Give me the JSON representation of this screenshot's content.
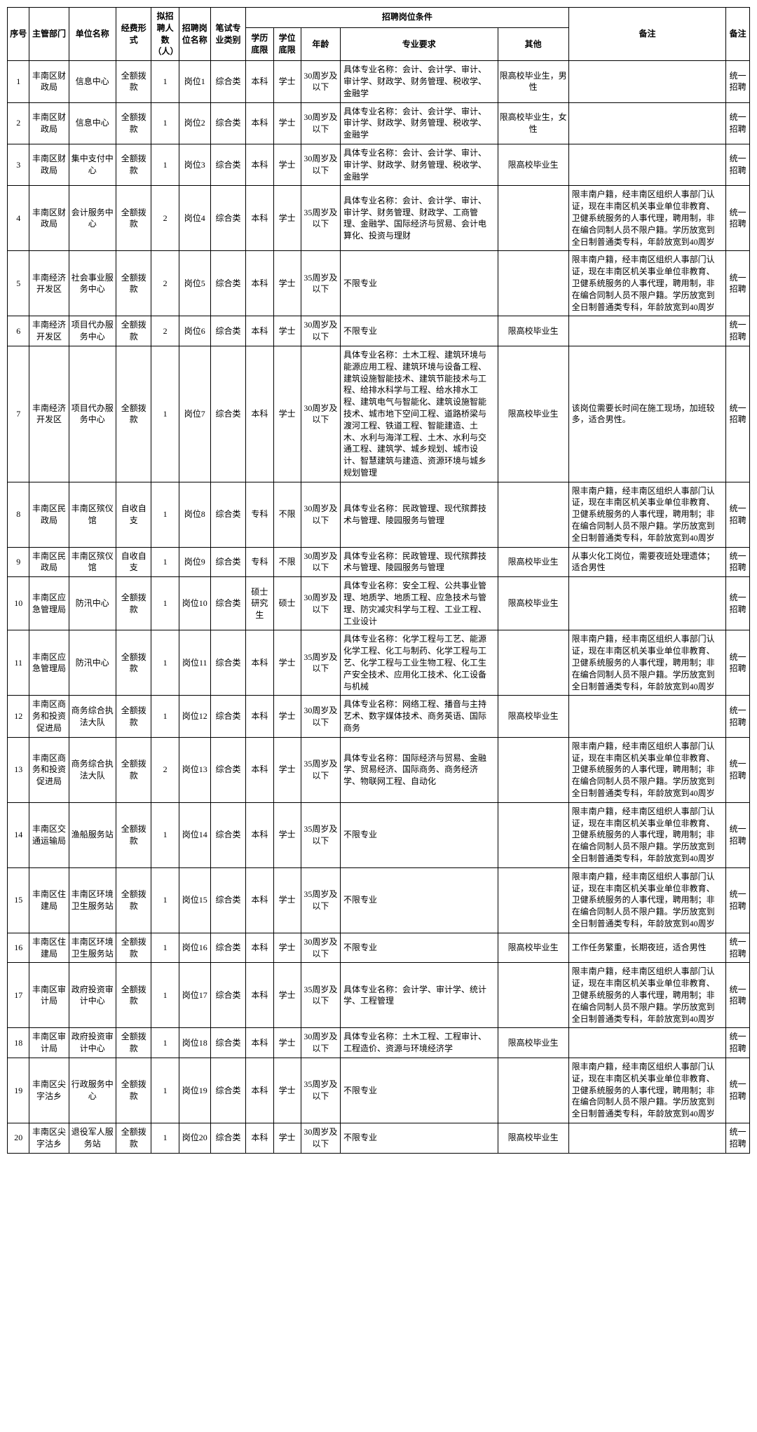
{
  "headers": {
    "seq": "序号",
    "dept": "主管部门",
    "unit": "单位名称",
    "fund": "经费形式",
    "num": "拟招聘人数（人）",
    "post": "招聘岗位名称",
    "exam": "笔试专业类别",
    "cond_group": "招聘岗位条件",
    "edu": "学历底限",
    "deg": "学位底限",
    "age": "年龄",
    "major": "专业要求",
    "other": "其他",
    "remark": "备注",
    "note": "备注"
  },
  "rows": [
    {
      "seq": "1",
      "dept": "丰南区财政局",
      "unit": "信息中心",
      "fund": "全额拨款",
      "num": "1",
      "post": "岗位1",
      "exam": "综合类",
      "edu": "本科",
      "deg": "学士",
      "age": "30周岁及以下",
      "major": "具体专业名称：会计、会计学、审计、审计学、财政学、财务管理、税收学、金融学",
      "other": "限高校毕业生，男性",
      "remark": "",
      "note": "统一招聘"
    },
    {
      "seq": "2",
      "dept": "丰南区财政局",
      "unit": "信息中心",
      "fund": "全额拨款",
      "num": "1",
      "post": "岗位2",
      "exam": "综合类",
      "edu": "本科",
      "deg": "学士",
      "age": "30周岁及以下",
      "major": "具体专业名称：会计、会计学、审计、审计学、财政学、财务管理、税收学、金融学",
      "other": "限高校毕业生，女性",
      "remark": "",
      "note": "统一招聘"
    },
    {
      "seq": "3",
      "dept": "丰南区财政局",
      "unit": "集中支付中心",
      "fund": "全额拨款",
      "num": "1",
      "post": "岗位3",
      "exam": "综合类",
      "edu": "本科",
      "deg": "学士",
      "age": "30周岁及以下",
      "major": "具体专业名称：会计、会计学、审计、审计学、财政学、财务管理、税收学、金融学",
      "other": "限高校毕业生",
      "remark": "",
      "note": "统一招聘"
    },
    {
      "seq": "4",
      "dept": "丰南区财政局",
      "unit": "会计服务中心",
      "fund": "全额拨款",
      "num": "2",
      "post": "岗位4",
      "exam": "综合类",
      "edu": "本科",
      "deg": "学士",
      "age": "35周岁及以下",
      "major": "具体专业名称：会计、会计学、审计、审计学、财务管理、财政学、工商管理、金融学、国际经济与贸易、会计电算化、投资与理财",
      "other": "",
      "remark": "限丰南户籍，经丰南区组织人事部门认证，现在丰南区机关事业单位非教育、卫健系统服务的人事代理，聘用制，非在编合同制人员不限户籍。学历放宽到全日制普通类专科，年龄放宽到40周岁",
      "note": "统一招聘"
    },
    {
      "seq": "5",
      "dept": "丰南经济开发区",
      "unit": "社会事业服务中心",
      "fund": "全额拨款",
      "num": "2",
      "post": "岗位5",
      "exam": "综合类",
      "edu": "本科",
      "deg": "学士",
      "age": "35周岁及以下",
      "major": "不限专业",
      "other": "",
      "remark": "限丰南户籍，经丰南区组织人事部门认证，现在丰南区机关事业单位非教育、卫健系统服务的人事代理，聘用制，非在编合同制人员不限户籍。学历放宽到全日制普通类专科，年龄放宽到40周岁",
      "note": "统一招聘"
    },
    {
      "seq": "6",
      "dept": "丰南经济开发区",
      "unit": "项目代办服务中心",
      "fund": "全额拨款",
      "num": "2",
      "post": "岗位6",
      "exam": "综合类",
      "edu": "本科",
      "deg": "学士",
      "age": "30周岁及以下",
      "major": "不限专业",
      "other": "限高校毕业生",
      "remark": "",
      "note": "统一招聘"
    },
    {
      "seq": "7",
      "dept": "丰南经济开发区",
      "unit": "项目代办服务中心",
      "fund": "全额拨款",
      "num": "1",
      "post": "岗位7",
      "exam": "综合类",
      "edu": "本科",
      "deg": "学士",
      "age": "30周岁及以下",
      "major": "具体专业名称：土木工程、建筑环境与能源应用工程、建筑环境与设备工程、建筑设施智能技术、建筑节能技术与工程、给排水科学与工程、给水排水工程、建筑电气与智能化、建筑设施智能技术、城市地下空间工程、道路桥梁与渡河工程、铁道工程、智能建造、土木、水利与海洋工程、土木、水利与交通工程、建筑学、城乡规划、城市设计、智慧建筑与建造、资源环境与城乡规划管理",
      "other": "限高校毕业生",
      "remark": "该岗位需要长时间在施工现场，加班较多，适合男性。",
      "note": "统一招聘"
    },
    {
      "seq": "8",
      "dept": "丰南区民政局",
      "unit": "丰南区殡仪馆",
      "fund": "自收自支",
      "num": "1",
      "post": "岗位8",
      "exam": "综合类",
      "edu": "专科",
      "deg": "不限",
      "age": "30周岁及以下",
      "major": "具体专业名称：民政管理、现代殡葬技术与管理、陵园服务与管理",
      "other": "",
      "remark": "限丰南户籍，经丰南区组织人事部门认证，现在丰南区机关事业单位非教育、卫健系统服务的人事代理，聘用制；非在编合同制人员不限户籍。学历放宽到全日制普通类专科，年龄放宽到40周岁",
      "note": "统一招聘"
    },
    {
      "seq": "9",
      "dept": "丰南区民政局",
      "unit": "丰南区殡仪馆",
      "fund": "自收自支",
      "num": "1",
      "post": "岗位9",
      "exam": "综合类",
      "edu": "专科",
      "deg": "不限",
      "age": "30周岁及以下",
      "major": "具体专业名称：民政管理、现代殡葬技术与管理、陵园服务与管理",
      "other": "限高校毕业生",
      "remark": "从事火化工岗位，需要夜班处理遗体；适合男性",
      "note": "统一招聘"
    },
    {
      "seq": "10",
      "dept": "丰南区应急管理局",
      "unit": "防汛中心",
      "fund": "全额拨款",
      "num": "1",
      "post": "岗位10",
      "exam": "综合类",
      "edu": "硕士研究生",
      "deg": "硕士",
      "age": "30周岁及以下",
      "major": "具体专业名称：安全工程、公共事业管理、地质学、地质工程、应急技术与管理、防灾减灾科学与工程、工业工程、工业设计",
      "other": "限高校毕业生",
      "remark": "",
      "note": "统一招聘"
    },
    {
      "seq": "11",
      "dept": "丰南区应急管理局",
      "unit": "防汛中心",
      "fund": "全额拨款",
      "num": "1",
      "post": "岗位11",
      "exam": "综合类",
      "edu": "本科",
      "deg": "学士",
      "age": "35周岁及以下",
      "major": "具体专业名称：化学工程与工艺、能源化学工程、化工与制药、化学工程与工艺、化学工程与工业生物工程、化工生产安全技术、应用化工技术、化工设备与机械",
      "other": "",
      "remark": "限丰南户籍，经丰南区组织人事部门认证，现在丰南区机关事业单位非教育、卫健系统服务的人事代理，聘用制；非在编合同制人员不限户籍。学历放宽到全日制普通类专科，年龄放宽到40周岁",
      "note": "统一招聘"
    },
    {
      "seq": "12",
      "dept": "丰南区商务和投资促进局",
      "unit": "商务综合执法大队",
      "fund": "全额拨款",
      "num": "1",
      "post": "岗位12",
      "exam": "综合类",
      "edu": "本科",
      "deg": "学士",
      "age": "30周岁及以下",
      "major": "具体专业名称：网络工程、播音与主持艺术、数字媒体技术、商务英语、国际商务",
      "other": "限高校毕业生",
      "remark": "",
      "note": "统一招聘"
    },
    {
      "seq": "13",
      "dept": "丰南区商务和投资促进局",
      "unit": "商务综合执法大队",
      "fund": "全额拨款",
      "num": "2",
      "post": "岗位13",
      "exam": "综合类",
      "edu": "本科",
      "deg": "学士",
      "age": "35周岁及以下",
      "major": "具体专业名称：国际经济与贸易、金融学、贸易经济、国际商务、商务经济学、物联网工程、自动化",
      "other": "",
      "remark": "限丰南户籍，经丰南区组织人事部门认证，现在丰南区机关事业单位非教育、卫健系统服务的人事代理，聘用制；非在编合同制人员不限户籍。学历放宽到全日制普通类专科，年龄放宽到40周岁",
      "note": "统一招聘"
    },
    {
      "seq": "14",
      "dept": "丰南区交通运输局",
      "unit": "渔船服务站",
      "fund": "全额拨款",
      "num": "1",
      "post": "岗位14",
      "exam": "综合类",
      "edu": "本科",
      "deg": "学士",
      "age": "35周岁及以下",
      "major": "不限专业",
      "other": "",
      "remark": "限丰南户籍，经丰南区组织人事部门认证，现在丰南区机关事业单位非教育、卫健系统服务的人事代理，聘用制；非在编合同制人员不限户籍。学历放宽到全日制普通类专科，年龄放宽到40周岁",
      "note": "统一招聘"
    },
    {
      "seq": "15",
      "dept": "丰南区住建局",
      "unit": "丰南区环境卫生服务站",
      "fund": "全额拨款",
      "num": "1",
      "post": "岗位15",
      "exam": "综合类",
      "edu": "本科",
      "deg": "学士",
      "age": "35周岁及以下",
      "major": "不限专业",
      "other": "",
      "remark": "限丰南户籍，经丰南区组织人事部门认证，现在丰南区机关事业单位非教育、卫健系统服务的人事代理，聘用制；非在编合同制人员不限户籍。学历放宽到全日制普通类专科，年龄放宽到40周岁",
      "note": "统一招聘"
    },
    {
      "seq": "16",
      "dept": "丰南区住建局",
      "unit": "丰南区环境卫生服务站",
      "fund": "全额拨款",
      "num": "1",
      "post": "岗位16",
      "exam": "综合类",
      "edu": "本科",
      "deg": "学士",
      "age": "30周岁及以下",
      "major": "不限专业",
      "other": "限高校毕业生",
      "remark": "工作任务繁重，长期夜班，适合男性",
      "note": "统一招聘"
    },
    {
      "seq": "17",
      "dept": "丰南区审计局",
      "unit": "政府投资审计中心",
      "fund": "全额拨款",
      "num": "1",
      "post": "岗位17",
      "exam": "综合类",
      "edu": "本科",
      "deg": "学士",
      "age": "35周岁及以下",
      "major": "具体专业名称：会计学、审计学、统计学、工程管理",
      "other": "",
      "remark": "限丰南户籍，经丰南区组织人事部门认证，现在丰南区机关事业单位非教育、卫健系统服务的人事代理，聘用制；非在编合同制人员不限户籍。学历放宽到全日制普通类专科，年龄放宽到40周岁",
      "note": "统一招聘"
    },
    {
      "seq": "18",
      "dept": "丰南区审计局",
      "unit": "政府投资审计中心",
      "fund": "全额拨款",
      "num": "1",
      "post": "岗位18",
      "exam": "综合类",
      "edu": "本科",
      "deg": "学士",
      "age": "30周岁及以下",
      "major": "具体专业名称：土木工程、工程审计、工程造价、资源与环境经济学",
      "other": "限高校毕业生",
      "remark": "",
      "note": "统一招聘"
    },
    {
      "seq": "19",
      "dept": "丰南区尖字沽乡",
      "unit": "行政服务中心",
      "fund": "全额拨款",
      "num": "1",
      "post": "岗位19",
      "exam": "综合类",
      "edu": "本科",
      "deg": "学士",
      "age": "35周岁及以下",
      "major": "不限专业",
      "other": "",
      "remark": "限丰南户籍，经丰南区组织人事部门认证，现在丰南区机关事业单位非教育、卫健系统服务的人事代理，聘用制；非在编合同制人员不限户籍。学历放宽到全日制普通类专科，年龄放宽到40周岁",
      "note": "统一招聘"
    },
    {
      "seq": "20",
      "dept": "丰南区尖字沽乡",
      "unit": "退役军人服务站",
      "fund": "全额拨款",
      "num": "1",
      "post": "岗位20",
      "exam": "综合类",
      "edu": "本科",
      "deg": "学士",
      "age": "30周岁及以下",
      "major": "不限专业",
      "other": "限高校毕业生",
      "remark": "",
      "note": "统一招聘"
    }
  ]
}
